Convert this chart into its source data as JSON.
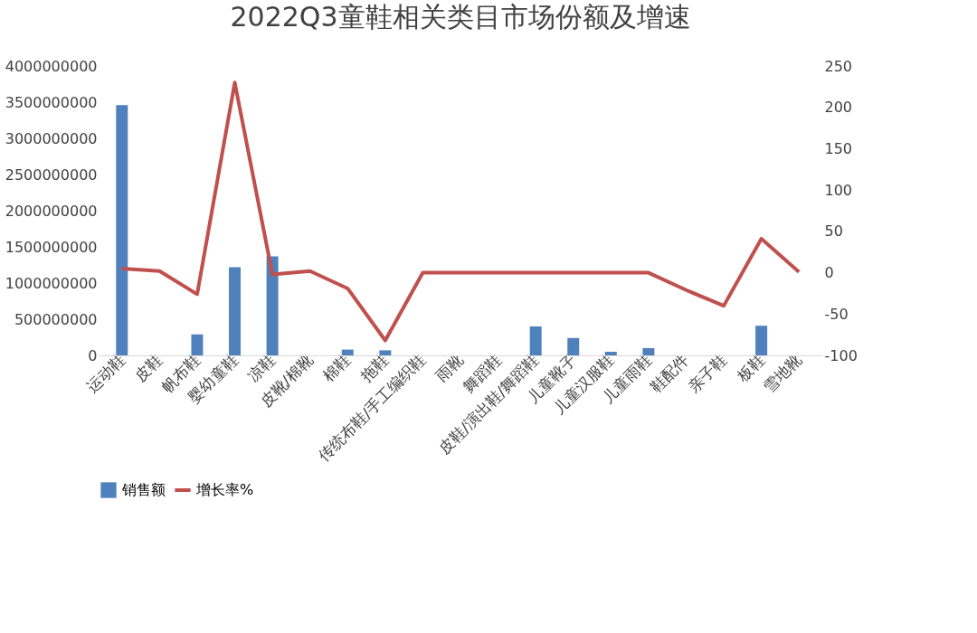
{
  "chart_data": {
    "type": "bar",
    "title": "2022Q3童鞋相关类目市场份额及增速",
    "categories": [
      "运动鞋",
      "皮鞋",
      "帆布鞋",
      "婴幼童鞋",
      "凉鞋",
      "皮靴/棉靴",
      "棉鞋",
      "拖鞋",
      "传统布鞋/手工编织鞋",
      "雨靴",
      "舞蹈鞋",
      "皮鞋/演出鞋/舞蹈鞋",
      "儿童靴子",
      "儿童汉服鞋",
      "儿童雨鞋",
      "鞋配件",
      "亲子鞋",
      "板鞋",
      "雪地靴"
    ],
    "series": [
      {
        "name": "销售额",
        "color": "#4f81bd",
        "values": [
          3460000000,
          0,
          290000000,
          1220000000,
          1370000000,
          0,
          80000000,
          70000000,
          0,
          0,
          0,
          400000000,
          240000000,
          50000000,
          100000000,
          0,
          0,
          410000000,
          0
        ]
      },
      {
        "name": "增长率%",
        "type": "line",
        "axis": "y2",
        "color": "#c0504d",
        "values": [
          5,
          2,
          -26,
          230,
          -2,
          2,
          -19,
          -82,
          0,
          0,
          0,
          0,
          0,
          0,
          0,
          -21,
          -40,
          41,
          1
        ]
      }
    ],
    "ylim": [
      0,
      4000000000
    ],
    "yticks": [
      0,
      500000000,
      1000000000,
      1500000000,
      2000000000,
      2500000000,
      3000000000,
      3500000000,
      4000000000
    ],
    "y2lim": [
      -100,
      250
    ],
    "y2ticks": [
      -100,
      -50,
      0,
      50,
      100,
      150,
      200,
      250
    ],
    "legend": "bottom",
    "grid": false,
    "marker": "none",
    "line_style": "solid"
  }
}
